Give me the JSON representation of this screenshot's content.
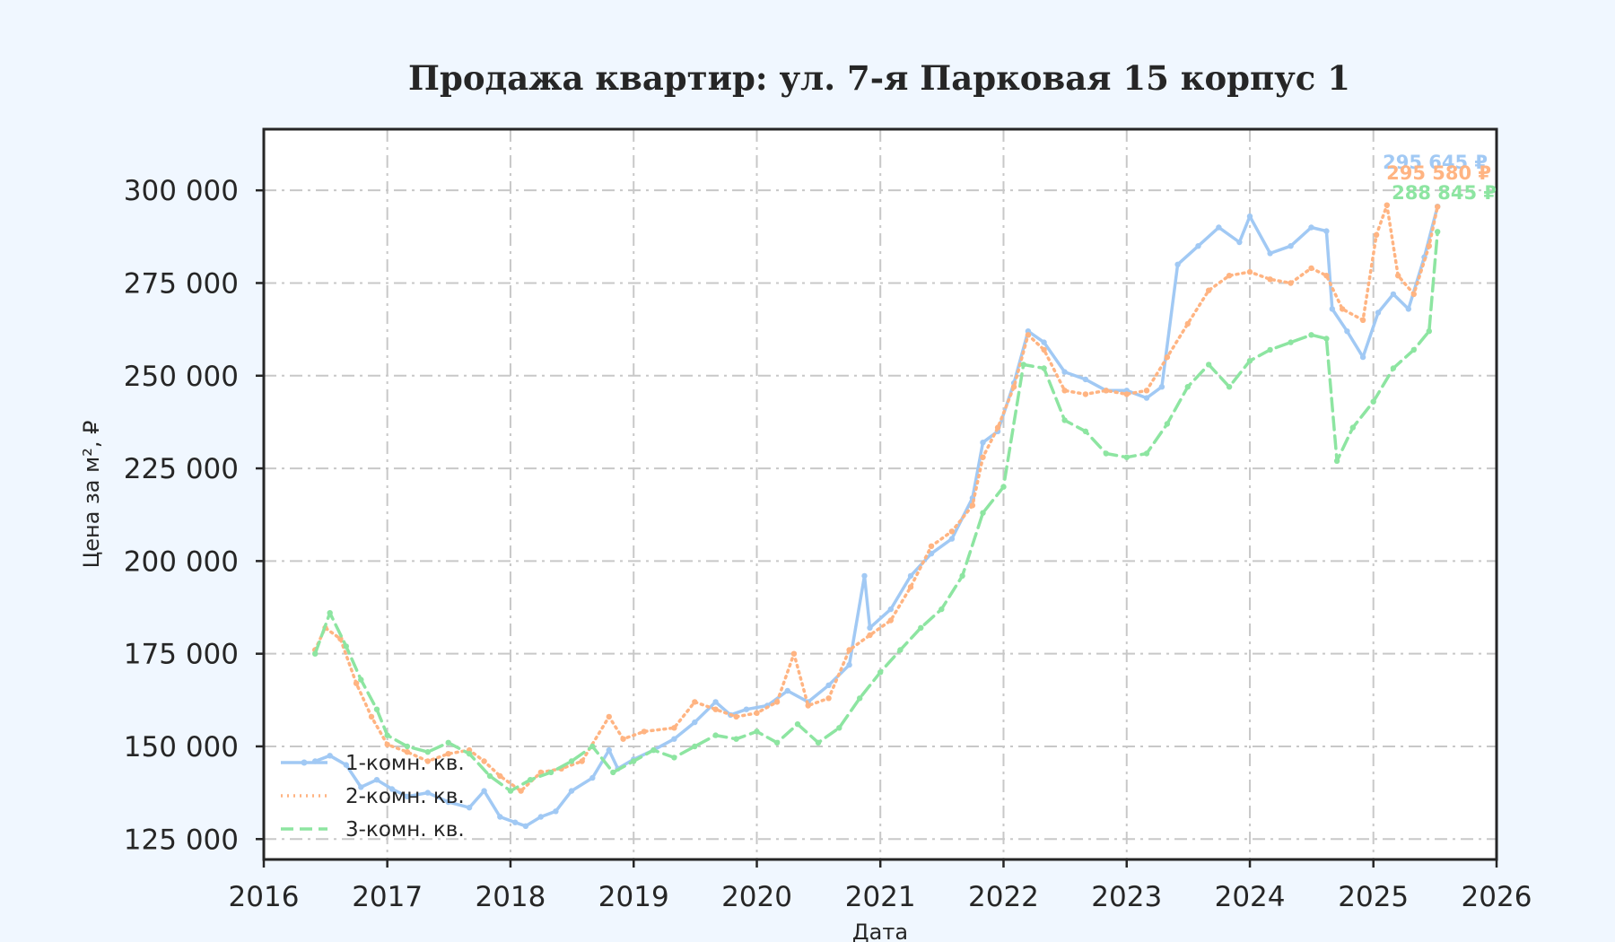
{
  "chart_data": {
    "type": "line",
    "title": "Продажа квартир: ул. 7-я Парковая 15 корпус 1",
    "xlabel": "Дата",
    "ylabel": "Цена за м², ₽",
    "xlim": [
      "2016-01-01",
      "2026-01-01"
    ],
    "ylim": [
      119500,
      316500
    ],
    "x_ticks": [
      "2016",
      "2017",
      "2018",
      "2019",
      "2020",
      "2021",
      "2022",
      "2023",
      "2024",
      "2025",
      "2026"
    ],
    "y_ticks": [
      125000,
      150000,
      175000,
      200000,
      225000,
      250000,
      275000,
      300000
    ],
    "y_tick_labels": [
      "125 000",
      "150 000",
      "175 000",
      "200 000",
      "225 000",
      "250 000",
      "275 000",
      "300 000"
    ],
    "grid": true,
    "legend_position": "lower-left",
    "series": [
      {
        "name": "1-комн. кв.",
        "color": "#a1c9f4",
        "style": "solid",
        "end_label": "295 645 ₽",
        "points": [
          [
            "2016-06-01",
            146000
          ],
          [
            "2016-07-15",
            147500
          ],
          [
            "2016-09-01",
            145000
          ],
          [
            "2016-10-15",
            139000
          ],
          [
            "2016-12-01",
            141000
          ],
          [
            "2017-01-15",
            138500
          ],
          [
            "2017-03-01",
            136500
          ],
          [
            "2017-05-01",
            137500
          ],
          [
            "2017-07-01",
            135000
          ],
          [
            "2017-09-01",
            133500
          ],
          [
            "2017-10-15",
            138000
          ],
          [
            "2017-12-01",
            131000
          ],
          [
            "2018-01-15",
            129500
          ],
          [
            "2018-02-15",
            128500
          ],
          [
            "2018-04-01",
            131000
          ],
          [
            "2018-05-15",
            132500
          ],
          [
            "2018-07-01",
            138000
          ],
          [
            "2018-09-01",
            141500
          ],
          [
            "2018-10-20",
            149000
          ],
          [
            "2018-11-15",
            144000
          ],
          [
            "2019-01-01",
            146500
          ],
          [
            "2019-03-01",
            149000
          ],
          [
            "2019-05-01",
            152000
          ],
          [
            "2019-07-01",
            156500
          ],
          [
            "2019-09-01",
            162000
          ],
          [
            "2019-10-15",
            158500
          ],
          [
            "2019-12-01",
            160000
          ],
          [
            "2020-02-01",
            161000
          ],
          [
            "2020-04-01",
            165000
          ],
          [
            "2020-06-01",
            162000
          ],
          [
            "2020-08-01",
            166500
          ],
          [
            "2020-10-01",
            172000
          ],
          [
            "2020-11-15",
            196000
          ],
          [
            "2020-12-01",
            182000
          ],
          [
            "2021-02-01",
            187000
          ],
          [
            "2021-04-01",
            196000
          ],
          [
            "2021-06-01",
            202000
          ],
          [
            "2021-08-01",
            206000
          ],
          [
            "2021-10-01",
            217000
          ],
          [
            "2021-11-01",
            232000
          ],
          [
            "2021-12-15",
            235000
          ],
          [
            "2022-02-01",
            248000
          ],
          [
            "2022-03-15",
            262000
          ],
          [
            "2022-05-01",
            259000
          ],
          [
            "2022-07-01",
            251000
          ],
          [
            "2022-09-01",
            249000
          ],
          [
            "2022-11-01",
            246000
          ],
          [
            "2023-01-01",
            246000
          ],
          [
            "2023-03-01",
            244000
          ],
          [
            "2023-04-15",
            247000
          ],
          [
            "2023-06-01",
            280000
          ],
          [
            "2023-08-01",
            285000
          ],
          [
            "2023-10-01",
            290000
          ],
          [
            "2023-12-01",
            286000
          ],
          [
            "2024-01-01",
            293000
          ],
          [
            "2024-03-01",
            283000
          ],
          [
            "2024-05-01",
            285000
          ],
          [
            "2024-07-01",
            290000
          ],
          [
            "2024-08-15",
            289000
          ],
          [
            "2024-09-01",
            268000
          ],
          [
            "2024-10-15",
            262000
          ],
          [
            "2024-12-01",
            255000
          ],
          [
            "2025-01-15",
            267000
          ],
          [
            "2025-03-01",
            272000
          ],
          [
            "2025-04-15",
            268000
          ],
          [
            "2025-06-01",
            282000
          ],
          [
            "2025-07-10",
            295645
          ]
        ]
      },
      {
        "name": "2-комн. кв.",
        "color": "#ffb482",
        "style": "dotted",
        "end_label": "295 580 ₽",
        "points": [
          [
            "2016-06-01",
            176000
          ],
          [
            "2016-07-01",
            182000
          ],
          [
            "2016-08-15",
            179000
          ],
          [
            "2016-10-01",
            167000
          ],
          [
            "2016-11-15",
            158000
          ],
          [
            "2017-01-01",
            150500
          ],
          [
            "2017-03-01",
            148500
          ],
          [
            "2017-05-01",
            146000
          ],
          [
            "2017-07-01",
            148000
          ],
          [
            "2017-09-01",
            149000
          ],
          [
            "2017-10-15",
            146000
          ],
          [
            "2017-12-01",
            142000
          ],
          [
            "2018-02-01",
            138000
          ],
          [
            "2018-04-01",
            143000
          ],
          [
            "2018-06-01",
            144000
          ],
          [
            "2018-08-01",
            146000
          ],
          [
            "2018-10-20",
            158000
          ],
          [
            "2018-12-01",
            152000
          ],
          [
            "2019-02-01",
            154000
          ],
          [
            "2019-05-01",
            155000
          ],
          [
            "2019-07-01",
            162000
          ],
          [
            "2019-09-01",
            160000
          ],
          [
            "2019-11-01",
            158000
          ],
          [
            "2020-01-01",
            159000
          ],
          [
            "2020-03-01",
            162000
          ],
          [
            "2020-04-20",
            175000
          ],
          [
            "2020-06-01",
            161000
          ],
          [
            "2020-08-01",
            163000
          ],
          [
            "2020-10-01",
            176000
          ],
          [
            "2020-12-01",
            180000
          ],
          [
            "2021-02-01",
            184000
          ],
          [
            "2021-04-01",
            193000
          ],
          [
            "2021-06-01",
            204000
          ],
          [
            "2021-08-01",
            208000
          ],
          [
            "2021-10-01",
            215000
          ],
          [
            "2021-11-01",
            228000
          ],
          [
            "2021-12-15",
            236000
          ],
          [
            "2022-02-01",
            247000
          ],
          [
            "2022-03-15",
            261000
          ],
          [
            "2022-05-01",
            257000
          ],
          [
            "2022-07-01",
            246000
          ],
          [
            "2022-09-01",
            245000
          ],
          [
            "2022-11-01",
            246000
          ],
          [
            "2023-01-01",
            245000
          ],
          [
            "2023-03-01",
            246000
          ],
          [
            "2023-05-01",
            255000
          ],
          [
            "2023-07-01",
            264000
          ],
          [
            "2023-09-01",
            273000
          ],
          [
            "2023-11-01",
            277000
          ],
          [
            "2024-01-01",
            278000
          ],
          [
            "2024-03-01",
            276000
          ],
          [
            "2024-05-01",
            275000
          ],
          [
            "2024-07-01",
            279000
          ],
          [
            "2024-08-15",
            277000
          ],
          [
            "2024-10-01",
            268000
          ],
          [
            "2024-12-01",
            265000
          ],
          [
            "2025-01-10",
            288000
          ],
          [
            "2025-02-10",
            296000
          ],
          [
            "2025-03-15",
            277000
          ],
          [
            "2025-05-01",
            272000
          ],
          [
            "2025-06-15",
            285000
          ],
          [
            "2025-07-10",
            295580
          ]
        ]
      },
      {
        "name": "3-комн. кв.",
        "color": "#8de5a1",
        "style": "dashed",
        "end_label": "288 845 ₽",
        "points": [
          [
            "2016-06-01",
            175000
          ],
          [
            "2016-07-15",
            186000
          ],
          [
            "2016-09-01",
            177000
          ],
          [
            "2016-10-15",
            168000
          ],
          [
            "2016-12-01",
            160000
          ],
          [
            "2017-01-01",
            153000
          ],
          [
            "2017-03-01",
            150000
          ],
          [
            "2017-05-01",
            148500
          ],
          [
            "2017-07-01",
            151000
          ],
          [
            "2017-09-01",
            148000
          ],
          [
            "2017-11-01",
            142000
          ],
          [
            "2018-01-01",
            138000
          ],
          [
            "2018-03-01",
            141000
          ],
          [
            "2018-05-01",
            143000
          ],
          [
            "2018-07-01",
            146000
          ],
          [
            "2018-09-01",
            150000
          ],
          [
            "2018-11-01",
            143000
          ],
          [
            "2019-01-01",
            146000
          ],
          [
            "2019-03-01",
            149000
          ],
          [
            "2019-05-01",
            147000
          ],
          [
            "2019-07-01",
            150000
          ],
          [
            "2019-09-01",
            153000
          ],
          [
            "2019-11-01",
            152000
          ],
          [
            "2020-01-01",
            154000
          ],
          [
            "2020-03-01",
            151000
          ],
          [
            "2020-05-01",
            156000
          ],
          [
            "2020-07-01",
            151000
          ],
          [
            "2020-09-01",
            155000
          ],
          [
            "2020-11-01",
            163000
          ],
          [
            "2021-01-01",
            170000
          ],
          [
            "2021-03-01",
            176000
          ],
          [
            "2021-05-01",
            182000
          ],
          [
            "2021-07-01",
            187000
          ],
          [
            "2021-09-01",
            196000
          ],
          [
            "2021-11-01",
            213000
          ],
          [
            "2022-01-01",
            220000
          ],
          [
            "2022-03-01",
            253000
          ],
          [
            "2022-05-01",
            252000
          ],
          [
            "2022-07-01",
            238000
          ],
          [
            "2022-09-01",
            235000
          ],
          [
            "2022-11-01",
            229000
          ],
          [
            "2023-01-01",
            228000
          ],
          [
            "2023-03-01",
            229000
          ],
          [
            "2023-05-01",
            237000
          ],
          [
            "2023-07-01",
            247000
          ],
          [
            "2023-09-01",
            253000
          ],
          [
            "2023-11-01",
            247000
          ],
          [
            "2024-01-01",
            254000
          ],
          [
            "2024-03-01",
            257000
          ],
          [
            "2024-05-01",
            259000
          ],
          [
            "2024-07-01",
            261000
          ],
          [
            "2024-08-15",
            260000
          ],
          [
            "2024-09-15",
            227000
          ],
          [
            "2024-11-01",
            236000
          ],
          [
            "2025-01-01",
            243000
          ],
          [
            "2025-03-01",
            252000
          ],
          [
            "2025-05-01",
            257000
          ],
          [
            "2025-06-15",
            262000
          ],
          [
            "2025-07-10",
            288845
          ]
        ]
      }
    ]
  }
}
